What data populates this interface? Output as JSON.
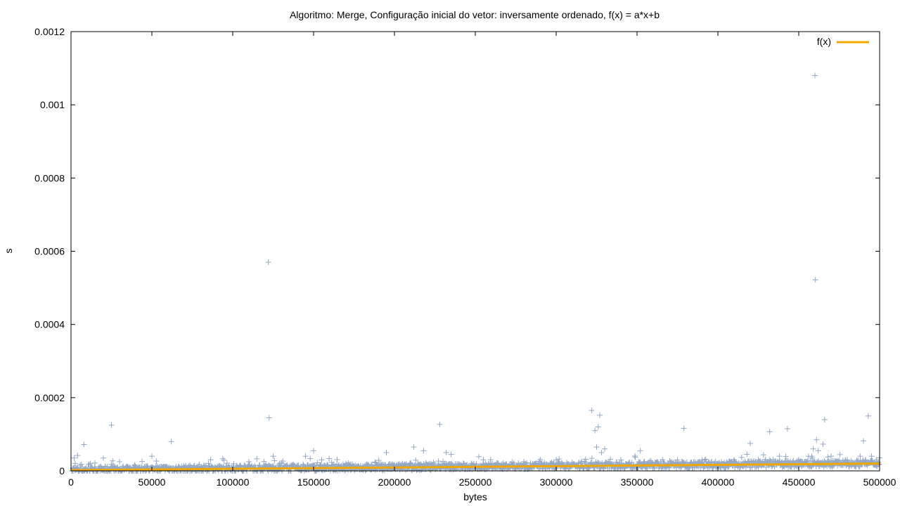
{
  "chart_data": {
    "type": "scatter",
    "title": "Algoritmo: Merge, Configuração inicial do vetor: inversamente ordenado, f(x) = a*x+b",
    "xlabel": "bytes",
    "ylabel": "s",
    "xlim": [
      0,
      500000
    ],
    "ylim": [
      0,
      0.0012
    ],
    "x_ticks": [
      0,
      50000,
      100000,
      150000,
      200000,
      250000,
      300000,
      350000,
      400000,
      450000,
      500000
    ],
    "x_tick_labels": [
      "0",
      "50000",
      "100000",
      "150000",
      "200000",
      "250000",
      "300000",
      "350000",
      "400000",
      "450000",
      "500000"
    ],
    "y_ticks": [
      0,
      0.0002,
      0.0004,
      0.0006,
      0.0008,
      0.001,
      0.0012
    ],
    "y_tick_labels": [
      "0",
      "0.0002",
      "0.0004",
      "0.0006",
      "0.0008",
      "0.001",
      "0.0012"
    ],
    "grid": false,
    "legend_position": "top-right",
    "scatter_color": "#94a8c4",
    "fit_color": "#f0a800",
    "series": [
      {
        "kind": "scatter",
        "marker": "plus",
        "points": [
          [
            2000,
            3.5e-05
          ],
          [
            4000,
            4.2e-05
          ],
          [
            8000,
            7.2e-05
          ],
          [
            12000,
            2e-05
          ],
          [
            20000,
            3.5e-05
          ],
          [
            25000,
            0.000125
          ],
          [
            30000,
            2.5e-05
          ],
          [
            50000,
            4e-05
          ],
          [
            62000,
            8e-05
          ],
          [
            70000,
            1e-05
          ],
          [
            85000,
            2e-05
          ],
          [
            110000,
            2.5e-05
          ],
          [
            122000,
            0.00057
          ],
          [
            122500,
            0.000145
          ],
          [
            125000,
            4e-05
          ],
          [
            145000,
            4e-05
          ],
          [
            150000,
            5.5e-05
          ],
          [
            155000,
            3e-05
          ],
          [
            170000,
            2e-05
          ],
          [
            195000,
            5e-05
          ],
          [
            205000,
            2e-05
          ],
          [
            212000,
            6.5e-05
          ],
          [
            218000,
            5.5e-05
          ],
          [
            222000,
            2e-05
          ],
          [
            228000,
            0.000127
          ],
          [
            232000,
            5e-05
          ],
          [
            235000,
            4.5e-05
          ],
          [
            255000,
            3e-05
          ],
          [
            280000,
            2.5e-05
          ],
          [
            300000,
            3e-05
          ],
          [
            322000,
            0.000165
          ],
          [
            324000,
            0.00011
          ],
          [
            325000,
            6.5e-05
          ],
          [
            326000,
            0.00012
          ],
          [
            327000,
            0.000152
          ],
          [
            328000,
            5e-05
          ],
          [
            330000,
            6e-05
          ],
          [
            340000,
            3e-05
          ],
          [
            352000,
            5.5e-05
          ],
          [
            375000,
            3e-05
          ],
          [
            379000,
            0.000116
          ],
          [
            390000,
            2e-05
          ],
          [
            410000,
            3e-05
          ],
          [
            418000,
            4.5e-05
          ],
          [
            420000,
            7.5e-05
          ],
          [
            425000,
            3e-05
          ],
          [
            430000,
            2e-05
          ],
          [
            432000,
            0.000107
          ],
          [
            438000,
            4e-05
          ],
          [
            443000,
            0.000115
          ],
          [
            450000,
            3e-05
          ],
          [
            458000,
            4e-05
          ],
          [
            459000,
            6e-05
          ],
          [
            460000,
            0.00108
          ],
          [
            460300,
            0.000522
          ],
          [
            461000,
            8.5e-05
          ],
          [
            462000,
            5.5e-05
          ],
          [
            465000,
            7.3e-05
          ],
          [
            466000,
            0.00014
          ],
          [
            470000,
            4e-05
          ],
          [
            480000,
            3e-05
          ],
          [
            488000,
            4e-05
          ],
          [
            490000,
            8.2e-05
          ],
          [
            493000,
            0.00015
          ],
          [
            495000,
            4e-05
          ],
          [
            498000,
            3e-05
          ]
        ]
      },
      {
        "kind": "line",
        "name": "f(x)",
        "x": [
          0,
          500000
        ],
        "y": [
          2e-06,
          2e-05
        ]
      }
    ]
  }
}
